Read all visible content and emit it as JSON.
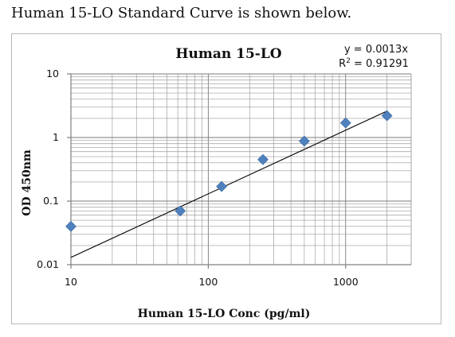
{
  "header": {
    "text": "Human 15-LO Standard Curve is shown below."
  },
  "chart_data": {
    "type": "scatter",
    "title": "Human 15-LO",
    "xlabel": "Human 15-LO Conc (pg/ml)",
    "ylabel": "OD 450nm",
    "xscale": "log",
    "yscale": "log",
    "xlim": [
      10,
      3000
    ],
    "ylim": [
      0.01,
      10
    ],
    "x_ticks": [
      10,
      100,
      1000
    ],
    "x_tick_labels": [
      "10",
      "100",
      "1000"
    ],
    "y_ticks": [
      0.01,
      0.1,
      1,
      10
    ],
    "y_tick_labels": [
      "0.01",
      "0.1",
      "1",
      "10"
    ],
    "grid": true,
    "legend": "none",
    "series": [
      {
        "x": [
          10,
          62.5,
          125,
          250,
          500,
          1000,
          2000
        ],
        "y": [
          0.04,
          0.07,
          0.17,
          0.45,
          0.88,
          1.7,
          2.2
        ],
        "marker": "diamond",
        "color": "#4f81bd"
      }
    ],
    "trendline": {
      "x": [
        10,
        2000
      ],
      "y": [
        0.013,
        2.6
      ],
      "color": "#000000",
      "equation": "y = 0.0013x",
      "r_squared_label": "R",
      "r_squared_exp": "2",
      "r_squared_value": " = 0.91291"
    }
  }
}
